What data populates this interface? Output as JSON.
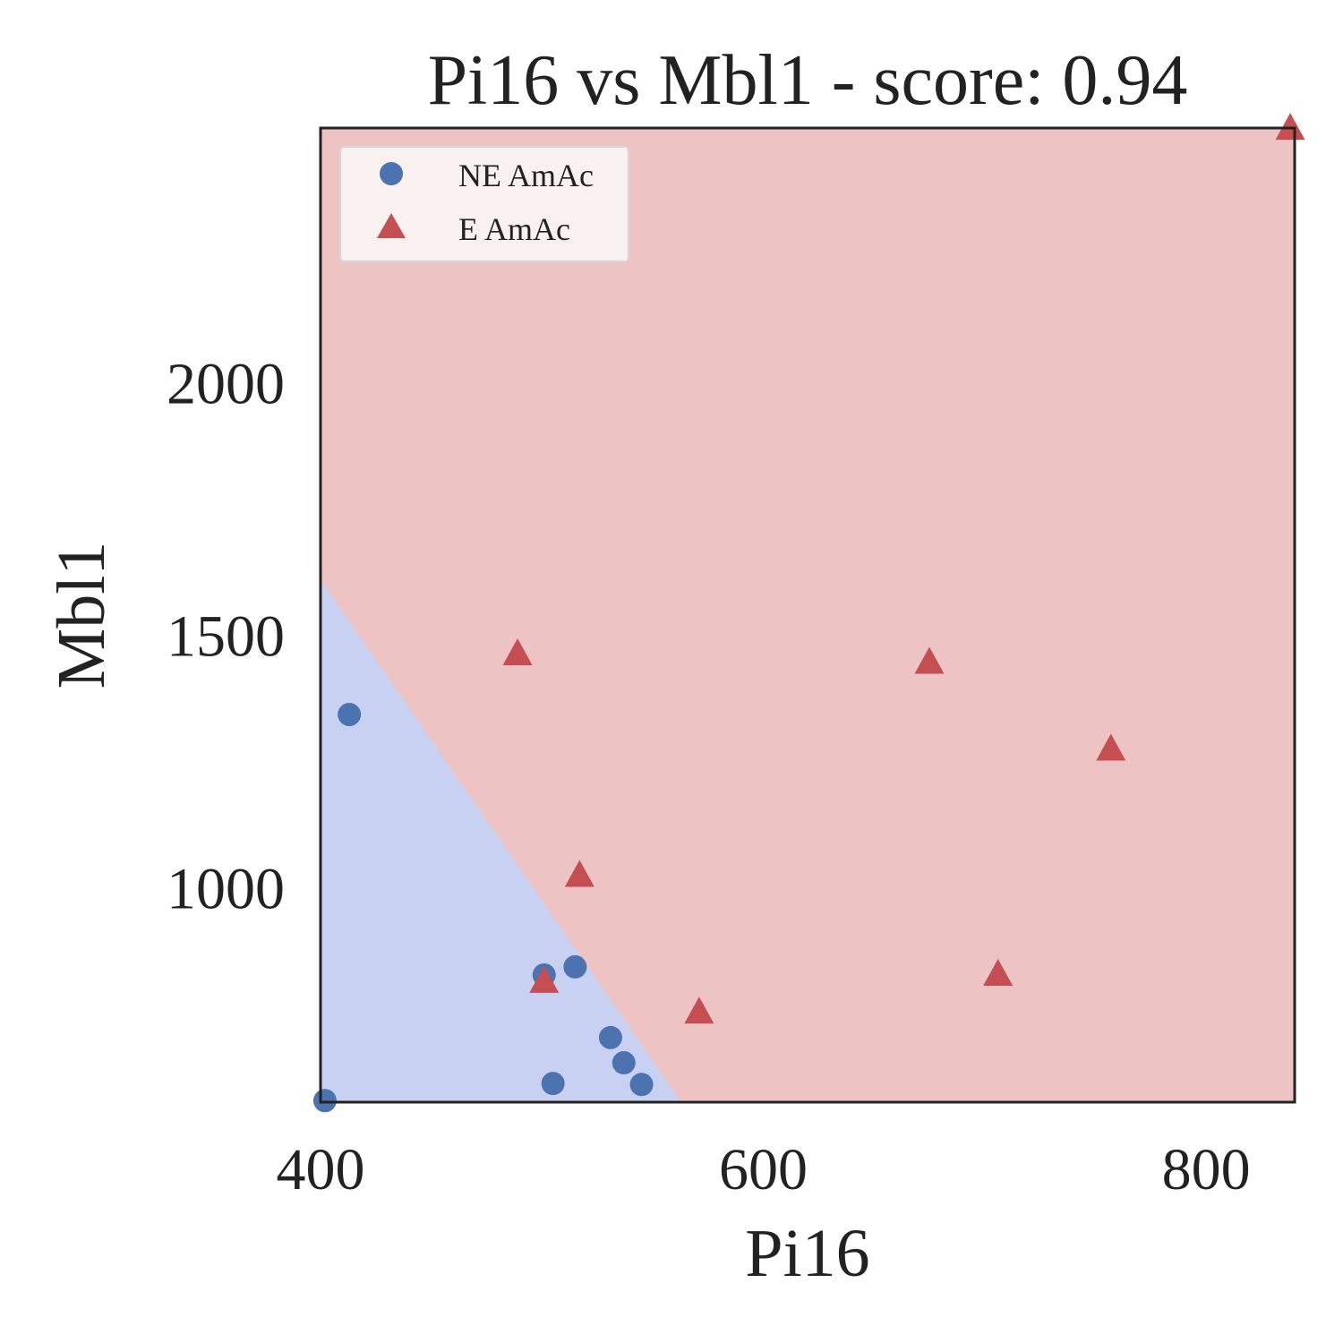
{
  "chart_data": {
    "type": "scatter",
    "title": "Pi16 vs Mbl1 - score: 0.94",
    "xlabel": "Pi16",
    "ylabel": "Mbl1",
    "xlim": [
      400,
      840
    ],
    "ylim": [
      575,
      2505
    ],
    "xticks": [
      {
        "value": 400,
        "label": "400"
      },
      {
        "value": 600,
        "label": "600"
      },
      {
        "value": 800,
        "label": "800"
      }
    ],
    "yticks": [
      {
        "value": 1000,
        "label": "1000"
      },
      {
        "value": 1500,
        "label": "1500"
      },
      {
        "value": 2000,
        "label": "2000"
      }
    ],
    "grid": false,
    "legend_position": "top-left",
    "decision_boundary": {
      "points": [
        [
          400,
          1610
        ],
        [
          563,
          575
        ]
      ],
      "colors": {
        "NE AmAc": "#c8d1f1",
        "E AmAc": "#edc4c3"
      }
    },
    "series": [
      {
        "name": "NE AmAc",
        "marker": "circle",
        "color": "#4c72b0",
        "points": [
          [
            402,
            578
          ],
          [
            413,
            1343
          ],
          [
            501,
            827
          ],
          [
            505,
            612
          ],
          [
            515,
            843
          ],
          [
            531,
            703
          ],
          [
            537,
            653
          ],
          [
            545,
            610
          ]
        ]
      },
      {
        "name": "E AmAc",
        "marker": "triangle",
        "color": "#c44e52",
        "points": [
          [
            489,
            1462
          ],
          [
            501,
            813
          ],
          [
            517,
            1023
          ],
          [
            571,
            752
          ],
          [
            675,
            1445
          ],
          [
            706,
            827
          ],
          [
            757,
            1273
          ],
          [
            838,
            2503
          ]
        ]
      }
    ]
  }
}
